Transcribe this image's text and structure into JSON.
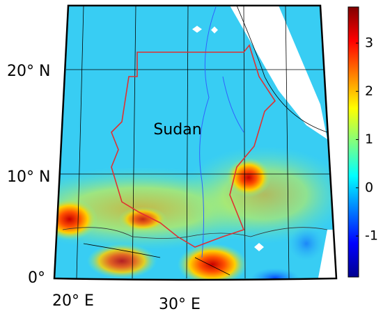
{
  "map": {
    "region_label": "Sudan",
    "lat_labels": [
      "20° N",
      "10° N",
      "0°"
    ],
    "lon_labels": [
      "20° E",
      "30° E"
    ]
  },
  "colorbar": {
    "lim": [
      -1.85,
      3.75
    ],
    "ticks": [
      -1,
      0,
      1,
      2,
      3
    ],
    "colormap": "jet"
  }
}
